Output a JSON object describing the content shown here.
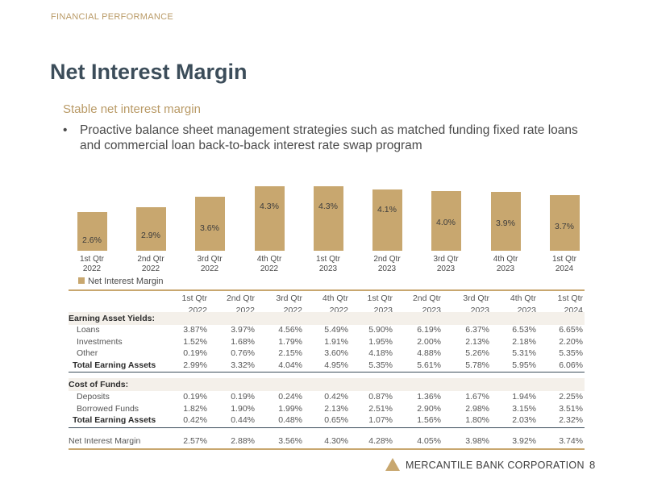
{
  "section": "FINANCIAL PERFORMANCE",
  "title": "Net Interest Margin",
  "subtitle": "Stable net interest margin",
  "bullet": "Proactive balance sheet management strategies such as matched funding fixed rate loans and commercial loan back-to-back interest rate swap program",
  "chart_data": {
    "type": "bar",
    "categories": [
      [
        "1st Qtr",
        "2022"
      ],
      [
        "2nd Qtr",
        "2022"
      ],
      [
        "3rd Qtr",
        "2022"
      ],
      [
        "4th Qtr",
        "2022"
      ],
      [
        "1st Qtr",
        "2023"
      ],
      [
        "2nd Qtr",
        "2023"
      ],
      [
        "3rd Qtr",
        "2023"
      ],
      [
        "4th Qtr",
        "2023"
      ],
      [
        "1st Qtr",
        "2024"
      ]
    ],
    "values": [
      2.6,
      2.9,
      3.6,
      4.3,
      4.3,
      4.1,
      4.0,
      3.9,
      3.7
    ],
    "labels": [
      "2.6%",
      "2.9%",
      "3.6%",
      "4.3%",
      "4.3%",
      "4.1%",
      "4.0%",
      "3.9%",
      "3.7%"
    ],
    "series": [
      {
        "name": "Net Interest Margin"
      }
    ],
    "legend": "bottom-left",
    "color": "#c8a76f",
    "grid": false
  },
  "table": {
    "columns": [
      [
        "1st Qtr",
        "2022"
      ],
      [
        "2nd Qtr",
        "2022"
      ],
      [
        "3rd Qtr",
        "2022"
      ],
      [
        "4th Qtr",
        "2022"
      ],
      [
        "1st Qtr",
        "2023"
      ],
      [
        "2nd Qtr",
        "2023"
      ],
      [
        "3rd Qtr",
        "2023"
      ],
      [
        "4th Qtr",
        "2023"
      ],
      [
        "1st Qtr",
        "2024"
      ]
    ],
    "yields_header": "Earning Asset Yields:",
    "yields": [
      {
        "label": "Loans",
        "values": [
          "3.87%",
          "3.97%",
          "4.56%",
          "5.49%",
          "5.90%",
          "6.19%",
          "6.37%",
          "6.53%",
          "6.65%"
        ]
      },
      {
        "label": "Investments",
        "values": [
          "1.52%",
          "1.68%",
          "1.79%",
          "1.91%",
          "1.95%",
          "2.00%",
          "2.13%",
          "2.18%",
          "2.20%"
        ]
      },
      {
        "label": "Other",
        "values": [
          "0.19%",
          "0.76%",
          "2.15%",
          "3.60%",
          "4.18%",
          "4.88%",
          "5.26%",
          "5.31%",
          "5.35%"
        ]
      },
      {
        "label": "Total Earning Assets",
        "bold": true,
        "values": [
          "2.99%",
          "3.32%",
          "4.04%",
          "4.95%",
          "5.35%",
          "5.61%",
          "5.78%",
          "5.95%",
          "6.06%"
        ]
      }
    ],
    "cost_header": "Cost of Funds:",
    "cost": [
      {
        "label": "Deposits",
        "values": [
          "0.19%",
          "0.19%",
          "0.24%",
          "0.42%",
          "0.87%",
          "1.36%",
          "1.67%",
          "1.94%",
          "2.25%"
        ]
      },
      {
        "label": "Borrowed Funds",
        "values": [
          "1.82%",
          "1.90%",
          "1.99%",
          "2.13%",
          "2.51%",
          "2.90%",
          "2.98%",
          "3.15%",
          "3.51%"
        ]
      },
      {
        "label": "Total Earning Assets",
        "bold": true,
        "values": [
          "0.42%",
          "0.44%",
          "0.48%",
          "0.65%",
          "1.07%",
          "1.56%",
          "1.80%",
          "2.03%",
          "2.32%"
        ]
      }
    ],
    "nim": {
      "label": "Net Interest Margin",
      "values": [
        "2.57%",
        "2.88%",
        "3.56%",
        "4.30%",
        "4.28%",
        "4.05%",
        "3.98%",
        "3.92%",
        "3.74%"
      ]
    }
  },
  "footer": {
    "company": "MERCANTILE BANK CORPORATION",
    "page": "8"
  }
}
